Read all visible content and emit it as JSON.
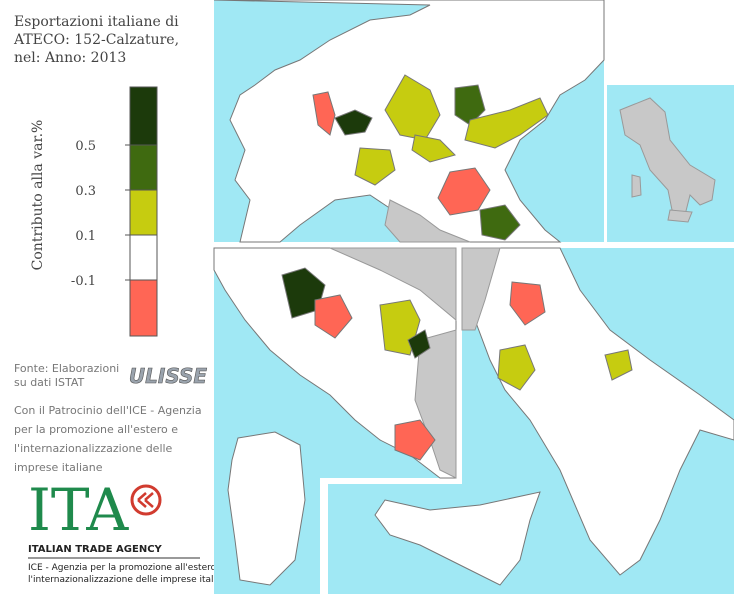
{
  "title_lines": [
    "Esportazioni italiane di",
    "ATECO: 152-Calzature,",
    "nel: Anno: 2013"
  ],
  "legend": {
    "label": "Contributo alla var.%",
    "ticks": [
      0.5,
      0.3,
      0.1,
      -0.1
    ],
    "colors": [
      "#1c3a0b",
      "#3f6a10",
      "#c6cc10",
      "#ffffff",
      "#ff6655"
    ]
  },
  "source_lines": [
    "Fonte: Elaborazioni",
    "su dati ISTAT"
  ],
  "ulisse": "ULISSE",
  "patronage_lines": [
    "Con il Patrocinio dell'ICE - Agenzia",
    "per la promozione all'estero e",
    "l'internazionalizzazione delle",
    "imprese italiane"
  ],
  "ita_logo": {
    "mark": "ITA",
    "agency": "ITALIAN TRADE AGENCY",
    "ice_lines": [
      "ICE - Agenzia per la promozione all'estero e",
      "l'internazionalizzazione delle imprese italiane"
    ]
  }
}
